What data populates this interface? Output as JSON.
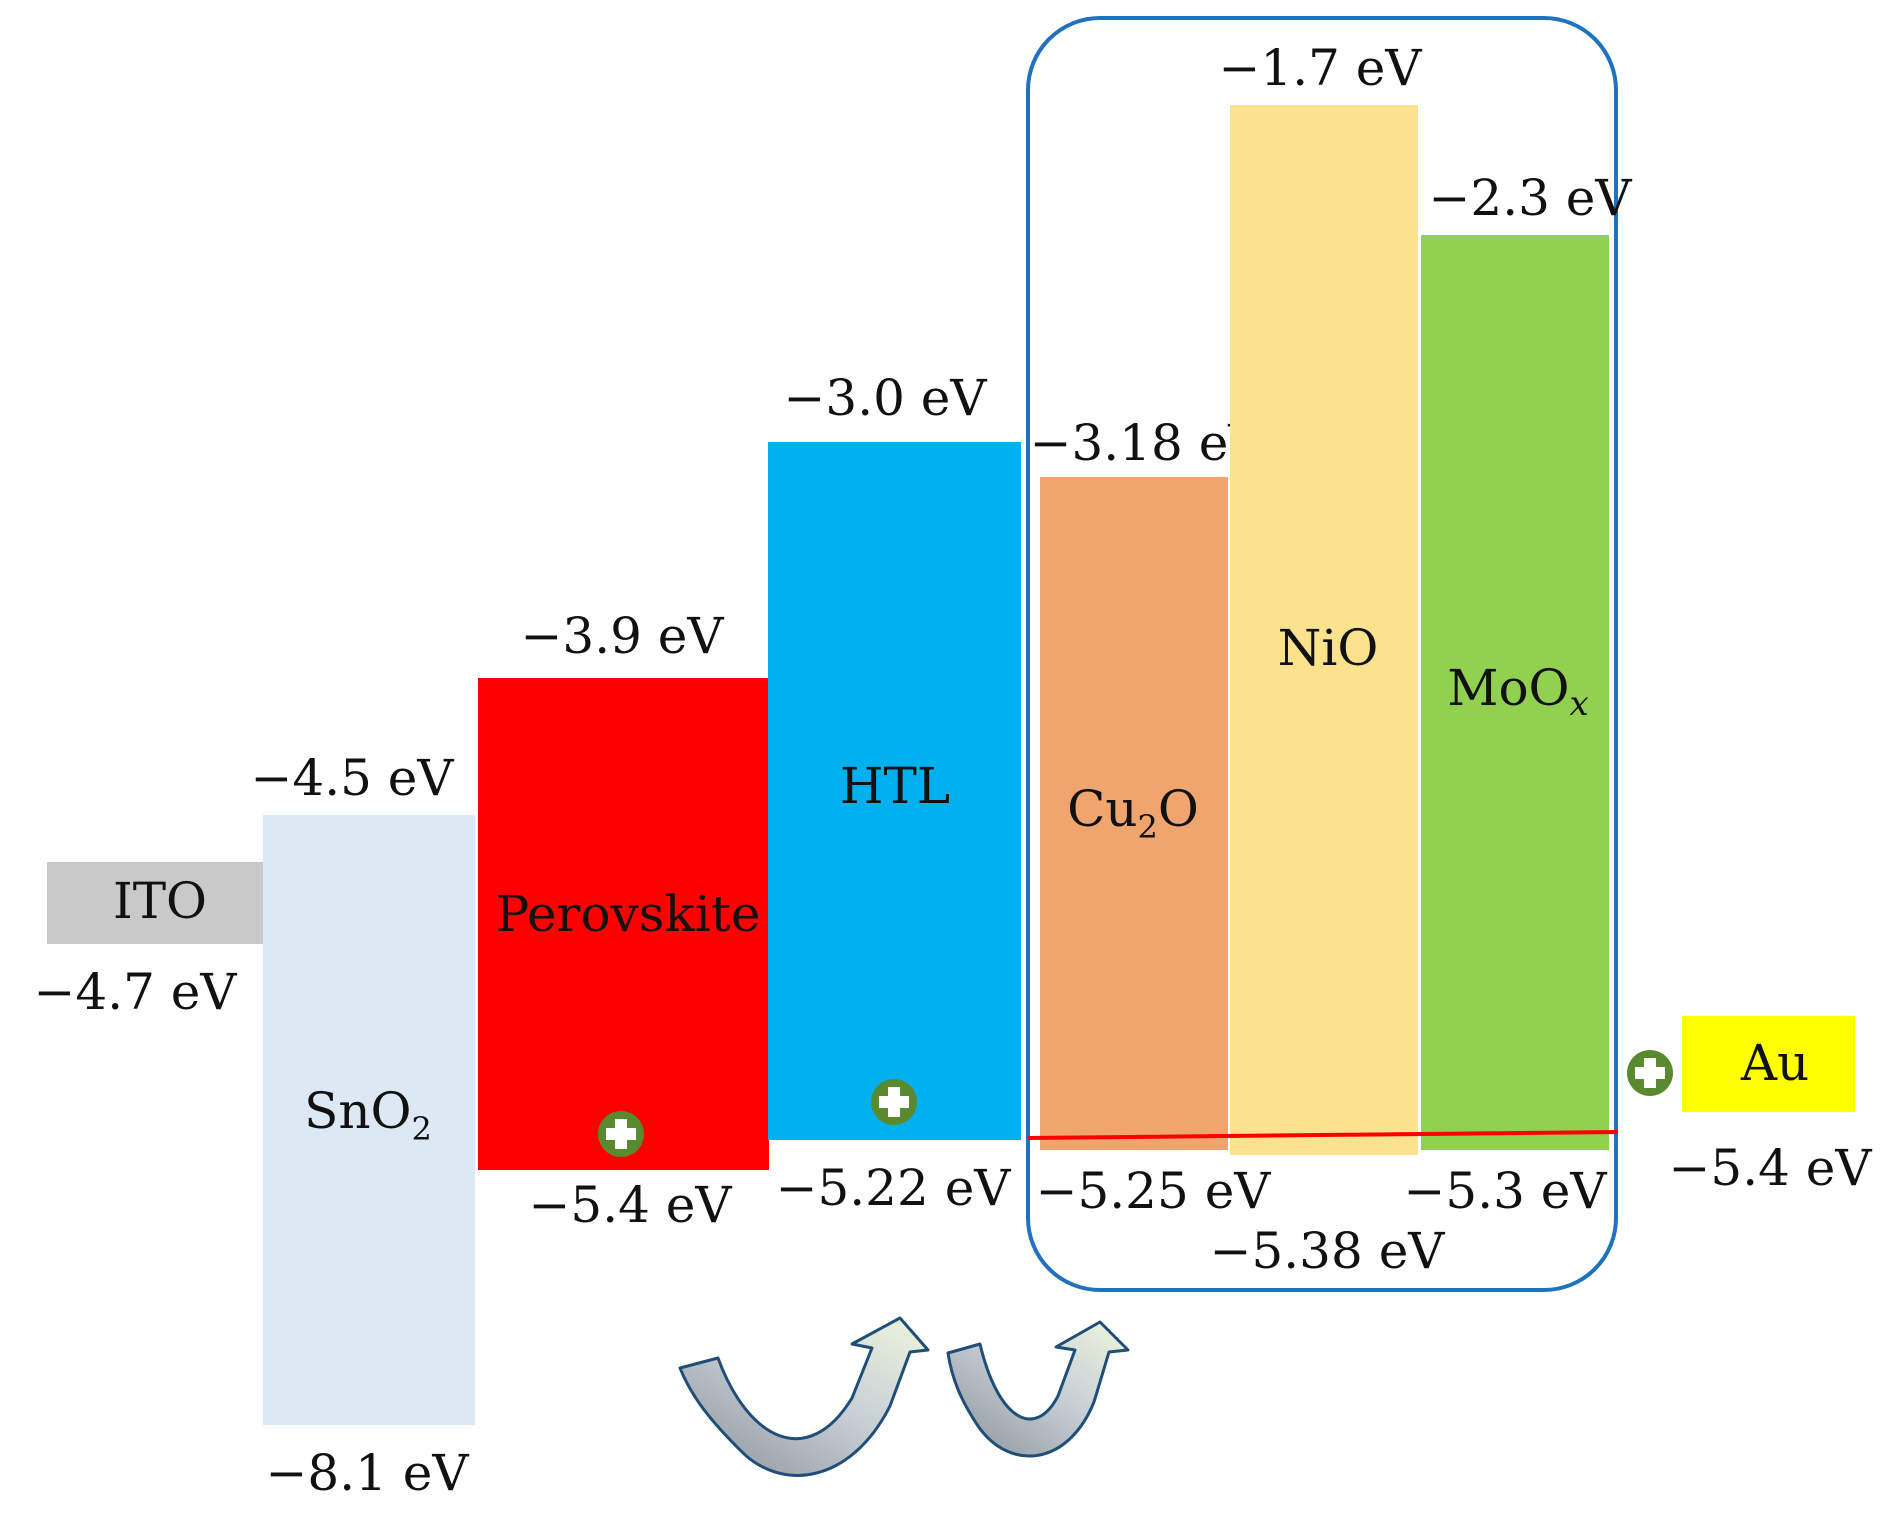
{
  "diagram": {
    "layers": [
      {
        "id": "ito",
        "name": "ITO",
        "color": "#c9c9c9",
        "lower_label": "−4.7 eV"
      },
      {
        "id": "sno2",
        "name": "SnO",
        "sub": "2",
        "color": "#dce8f4",
        "upper_label": "−4.5 eV",
        "lower_label": "−8.1 eV"
      },
      {
        "id": "perovskite",
        "name": "Perovskite",
        "color": "#ff0000",
        "upper_label": "−3.9 eV",
        "lower_label": "−5.4 eV"
      },
      {
        "id": "htl",
        "name": "HTL",
        "color": "#00b0ef",
        "upper_label": "−3.0 eV",
        "lower_label": "−5.22 eV"
      },
      {
        "id": "cu2o",
        "name": "Cu",
        "sub": "2",
        "name_tail": "O",
        "color": "#f0a56f",
        "upper_label": "−3.18 eV",
        "lower_label": "−5.25 eV"
      },
      {
        "id": "nio",
        "name": "NiO",
        "color": "#fde28e",
        "upper_label": "−1.7 eV",
        "lower_label": "−5.38 eV"
      },
      {
        "id": "moox",
        "name": "MoO",
        "sub": "x",
        "color": "#92d050",
        "upper_label": "−2.3 eV",
        "lower_label": "−5.3 eV"
      },
      {
        "id": "au",
        "name": "Au",
        "color": "#ffff00",
        "lower_label": "−5.4 eV"
      }
    ],
    "colors": {
      "group_box": "#1f72c0",
      "alignment_line": "#ff0000",
      "hole_marker": "#5a8a30",
      "arrow_stroke": "#1f4e79"
    },
    "icons": [
      "hole-plus-icon",
      "curved-up-arrow-icon"
    ]
  }
}
